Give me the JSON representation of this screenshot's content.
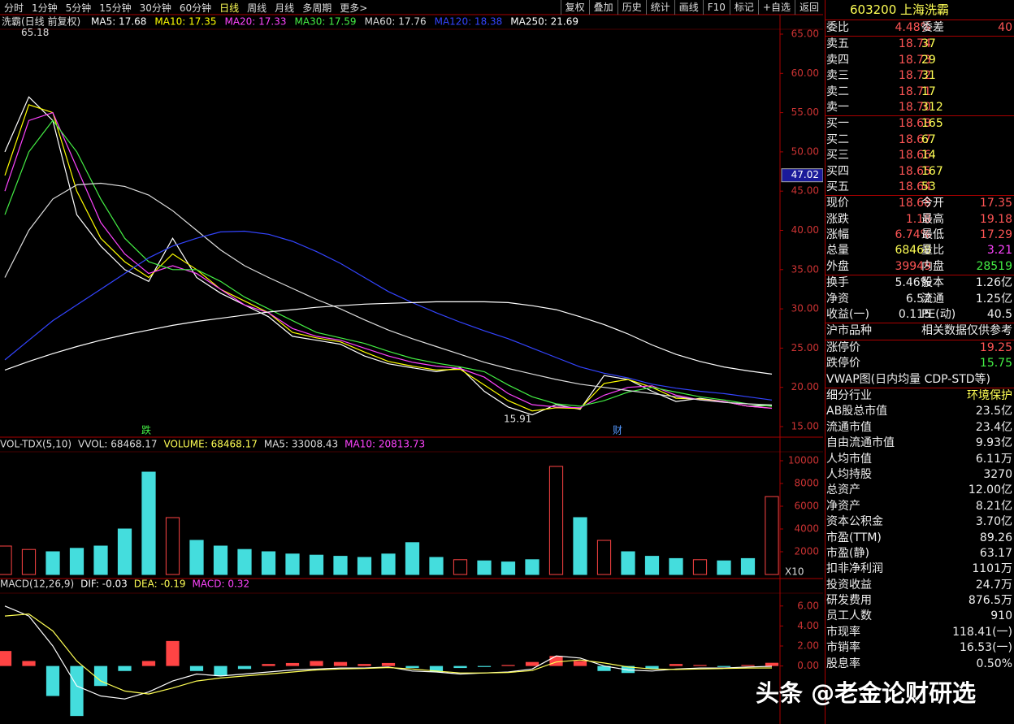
{
  "toolbar": {
    "periods": [
      "分时",
      "1分钟",
      "5分钟",
      "15分钟",
      "30分钟",
      "60分钟",
      "日线",
      "周线",
      "月线",
      "多周期",
      "更多>"
    ],
    "buttons": [
      "复权",
      "叠加",
      "历史",
      "统计",
      "画线",
      "F10",
      "标记",
      "+自选",
      "返回"
    ]
  },
  "price_pane": {
    "title": "洗霸(日线 前复权)",
    "series": [
      {
        "name": "MA5: 17.68",
        "color": "#ffffff",
        "values": [
          50,
          57,
          54,
          42,
          38,
          35,
          33.5,
          39,
          34,
          32,
          30.5,
          29,
          26.5,
          26,
          25.5,
          24,
          23,
          22.5,
          22,
          22.5,
          19.5,
          17.5,
          16.5,
          17.8,
          17.2,
          21.5,
          21,
          19.5,
          18.2,
          18.6,
          18.2,
          17.6,
          17.68
        ]
      },
      {
        "name": "MA10: 17.35",
        "color": "#ffff00",
        "values": [
          47,
          56,
          55,
          45,
          39,
          36,
          34,
          37,
          35,
          32.5,
          31,
          29.5,
          27,
          26.3,
          25.8,
          24.5,
          23.3,
          22.7,
          22.2,
          22.3,
          20.3,
          18.3,
          17,
          17.4,
          17.3,
          20.5,
          21,
          20,
          18.6,
          18.5,
          18.2,
          17.6,
          17.35
        ]
      },
      {
        "name": "MA20: 17.33",
        "color": "#ff44ff",
        "values": [
          45,
          54,
          55,
          48,
          41,
          37,
          34.5,
          35.5,
          34.5,
          32.5,
          30.5,
          29.5,
          27.5,
          26.5,
          26,
          25,
          24,
          23.2,
          22.7,
          22.4,
          21.3,
          19.2,
          17.8,
          17.5,
          17.4,
          19,
          20,
          20.2,
          19,
          18.4,
          18.2,
          17.6,
          17.33
        ]
      },
      {
        "name": "MA30: 17.59",
        "color": "#44ee44",
        "values": [
          42,
          50,
          54,
          50,
          44,
          39,
          36,
          35,
          35,
          33.5,
          31.5,
          30,
          28.5,
          27,
          26.3,
          25.6,
          24.6,
          23.7,
          23.1,
          22.6,
          22,
          20.3,
          18.8,
          17.9,
          17.6,
          18.3,
          19.4,
          20,
          19.4,
          18.8,
          18.4,
          17.9,
          17.59
        ]
      },
      {
        "name": "MA60: 17.76",
        "color": "#dddddd",
        "values": [
          34,
          40,
          44,
          45.8,
          46,
          45.6,
          44.5,
          42.5,
          40,
          37.5,
          35.5,
          34,
          32.6,
          31.2,
          30,
          28.6,
          27.3,
          26.2,
          25.2,
          24.2,
          23.2,
          22.4,
          21.7,
          21,
          20.4,
          20,
          19.6,
          19.2,
          18.8,
          18.4,
          18.1,
          17.9,
          17.76
        ]
      },
      {
        "name": "MA120: 18.38",
        "color": "#3344ff",
        "values": [
          23.5,
          26,
          28.5,
          30.5,
          32.5,
          34.5,
          36.5,
          38,
          39,
          39.8,
          39.9,
          39.5,
          38.6,
          37.3,
          35.8,
          34,
          32.2,
          30.8,
          29.5,
          28.3,
          27.2,
          26.2,
          25,
          23.8,
          22.6,
          21.8,
          21.2,
          20.4,
          19.9,
          19.5,
          19.2,
          18.8,
          18.38
        ]
      },
      {
        "name": "MA250: 21.69",
        "color": "#ffffff",
        "values": [
          22.2,
          23.3,
          24.3,
          25.2,
          26,
          26.7,
          27.3,
          27.9,
          28.4,
          28.8,
          29.2,
          29.6,
          29.9,
          30.2,
          30.4,
          30.6,
          30.7,
          30.8,
          30.9,
          30.9,
          30.9,
          30.8,
          30.4,
          29.9,
          29,
          28,
          26.8,
          25.4,
          24.2,
          23.3,
          22.6,
          22.1,
          21.69
        ]
      }
    ],
    "ylim": [
      15,
      65
    ],
    "yticks": [
      {
        "value": 15,
        "label": "15.00"
      },
      {
        "value": 20,
        "label": "20.00"
      },
      {
        "value": 25,
        "label": "25.00"
      },
      {
        "value": 30,
        "label": "30.00"
      },
      {
        "value": 35,
        "label": "35.00"
      },
      {
        "value": 40,
        "label": "40.00"
      },
      {
        "value": 45,
        "label": "45.00"
      },
      {
        "value": 50,
        "label": "50.00"
      },
      {
        "value": 55,
        "label": "55.00"
      },
      {
        "value": 60,
        "label": "60.00"
      },
      {
        "value": 65,
        "label": "65.00"
      }
    ],
    "cursor_price": 47.02,
    "high": 65.18,
    "low": 15.91,
    "markers": [
      "跌",
      "财"
    ]
  },
  "volume_pane": {
    "legend": [
      "VOL-TDX(5,10)",
      "VVOL: 68468.17",
      "VOLUME: 68468.17",
      "MA5: 33008.43",
      "MA10: 20813.73"
    ],
    "values": [
      2500,
      2200,
      2000,
      2300,
      2500,
      4000,
      9000,
      5000,
      3000,
      2500,
      2200,
      2000,
      1800,
      1700,
      1600,
      1500,
      1800,
      2800,
      1500,
      1300,
      1200,
      1100,
      1300,
      9500,
      5000,
      3000,
      2000,
      1600,
      1400,
      1300,
      1200,
      1400,
      6846.8
    ],
    "ylim": [
      0,
      10500
    ],
    "yticks": [
      2000,
      4000,
      6000,
      8000,
      10000
    ],
    "unit": "X10"
  },
  "macd_pane": {
    "legend": [
      "MACD(12,26,9)",
      "DIF: -0.03",
      "DEA: -0.19",
      "MACD: 0.32"
    ],
    "macd": [
      1.5,
      0.5,
      -3,
      -5,
      -2,
      -0.5,
      0.5,
      2.5,
      -0.5,
      -1,
      -0.3,
      0.2,
      0.3,
      0.5,
      0.4,
      0.2,
      0.3,
      -0.2,
      -0.6,
      -0.2,
      -0.1,
      0.1,
      0.4,
      1,
      0.5,
      -0.5,
      -0.7,
      -0.3,
      0.2,
      0.1,
      -0.1,
      0.1,
      0.32
    ],
    "dif": [
      6,
      5,
      2,
      -2,
      -3,
      -3.3,
      -2.6,
      -1.5,
      -0.8,
      -1,
      -0.8,
      -0.6,
      -0.4,
      -0.3,
      -0.2,
      -0.2,
      -0.1,
      -0.5,
      -0.6,
      -0.8,
      -0.7,
      -0.6,
      -0.3,
      1,
      0.8,
      0,
      -0.4,
      -0.5,
      -0.3,
      -0.2,
      -0.2,
      -0.1,
      -0.03
    ],
    "dea": [
      5,
      5.2,
      3.5,
      0.5,
      -1.5,
      -2.5,
      -2.8,
      -2.2,
      -1.5,
      -1.2,
      -1,
      -0.8,
      -0.6,
      -0.4,
      -0.3,
      -0.25,
      -0.15,
      -0.3,
      -0.5,
      -0.7,
      -0.7,
      -0.65,
      -0.45,
      0.4,
      0.6,
      0.3,
      -0.1,
      -0.3,
      -0.35,
      -0.3,
      -0.25,
      -0.2,
      -0.19
    ],
    "ylim": [
      -5.8,
      7.2
    ],
    "yticks": [
      {
        "value": 0,
        "label": "0.00"
      },
      {
        "value": 2,
        "label": "2.00"
      },
      {
        "value": 4,
        "label": "4.00"
      },
      {
        "value": 6,
        "label": "6.00"
      }
    ]
  },
  "quote": {
    "title": "603200 上海洗霸",
    "ratio": [
      "委比",
      "4.48%",
      "委差",
      "40"
    ],
    "sells": [
      [
        "卖五",
        "18.74",
        "37"
      ],
      [
        "卖四",
        "18.73",
        "29"
      ],
      [
        "卖三",
        "18.72",
        "31"
      ],
      [
        "卖二",
        "18.71",
        "17"
      ],
      [
        "卖一",
        "18.70",
        "312"
      ]
    ],
    "buys": [
      [
        "买一",
        "18.68",
        "165"
      ],
      [
        "买二",
        "18.67",
        "67"
      ],
      [
        "买三",
        "18.66",
        "14"
      ],
      [
        "买四",
        "18.65",
        "167"
      ],
      [
        "买五",
        "18.64",
        "53"
      ]
    ],
    "stats": [
      [
        "现价",
        "18.68",
        "今开",
        "17.35"
      ],
      [
        "涨跌",
        "1.18",
        "最高",
        "19.18"
      ],
      [
        "涨幅",
        "6.74%",
        "最低",
        "17.29"
      ],
      [
        "总量",
        "68468",
        "量比",
        "3.21"
      ],
      [
        "外盘",
        "39949",
        "内盘",
        "28519"
      ]
    ],
    "shares": [
      [
        "换手",
        "5.46%",
        "股本",
        "1.26亿"
      ],
      [
        "净资",
        "6.52",
        "流通",
        "1.25亿"
      ],
      [
        "收益(一)",
        "0.115",
        "PE(动)",
        "40.5"
      ]
    ],
    "market": [
      "沪市品种",
      "相关数据仅供参考"
    ],
    "limits": [
      [
        "涨停价",
        "19.25"
      ],
      [
        "跌停价",
        "15.75"
      ]
    ],
    "vwap": "VWAP图(日内均量 CDP-STD等)",
    "fundamentals": [
      [
        "细分行业",
        "环境保护"
      ],
      [
        "AB股总市值",
        "23.5亿"
      ],
      [
        "流通市值",
        "23.4亿"
      ],
      [
        "自由流通市值",
        "9.93亿"
      ],
      [
        "人均市值",
        "6.11万"
      ],
      [
        "人均持股",
        "3270"
      ],
      [
        "总资产",
        "12.00亿"
      ],
      [
        "净资产",
        "8.21亿"
      ],
      [
        "资本公积金",
        "3.70亿"
      ],
      [
        "市盈(TTM)",
        "89.26"
      ],
      [
        "市盈(静)",
        "63.17"
      ],
      [
        "扣非净利润",
        "1101万"
      ],
      [
        "投资收益",
        "24.7万"
      ],
      [
        "研发费用",
        "876.5万"
      ],
      [
        "员工人数",
        "910"
      ],
      [
        "市现率",
        "118.41(一)"
      ],
      [
        "市销率",
        "16.53(一)"
      ],
      [
        "股息率",
        "0.50%"
      ]
    ]
  },
  "watermark": "头条 @老金论财研选"
}
